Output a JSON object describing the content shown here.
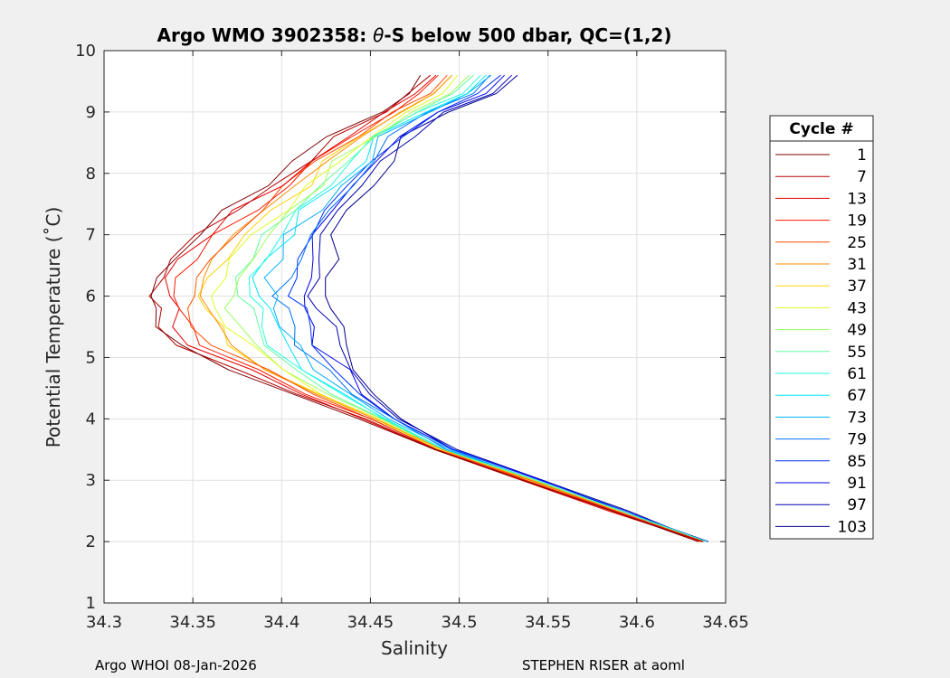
{
  "window": {
    "title_parts": [
      "Argo WMO 3902358: ",
      "θ",
      "-S below 500 dbar,  QC=(1,2)"
    ],
    "footer_left": "Argo WHOI 08-Jan-2026",
    "footer_right": "STEPHEN RISER at aoml"
  },
  "chart_data": {
    "type": "line",
    "title": "Argo WMO 3902358: θ-S below 500 dbar,  QC=(1,2)",
    "xlabel": "Salinity",
    "ylabel": "Potential Temperature (˚C)",
    "xlim": [
      34.3,
      34.65
    ],
    "ylim": [
      1,
      10
    ],
    "grid": true,
    "xticks": [
      "34.3",
      "34.35",
      "34.4",
      "34.45",
      "34.5",
      "34.55",
      "34.6",
      "34.65"
    ],
    "yticks": [
      "1",
      "2",
      "3",
      "4",
      "5",
      "6",
      "7",
      "8",
      "9",
      "10"
    ],
    "legend": {
      "title": "Cycle #",
      "placement": "right-outside",
      "entries": [
        {
          "label": "1",
          "color": "#800000"
        },
        {
          "label": "7",
          "color": "#b30000"
        },
        {
          "label": "13",
          "color": "#e60000"
        },
        {
          "label": "19",
          "color": "#ff1a00"
        },
        {
          "label": "25",
          "color": "#ff5000"
        },
        {
          "label": "31",
          "color": "#ff8c00"
        },
        {
          "label": "37",
          "color": "#ffd200"
        },
        {
          "label": "43",
          "color": "#e0ff20"
        },
        {
          "label": "49",
          "color": "#a0ff60"
        },
        {
          "label": "55",
          "color": "#60ff9f"
        },
        {
          "label": "61",
          "color": "#20ffdf"
        },
        {
          "label": "67",
          "color": "#00e5ff"
        },
        {
          "label": "73",
          "color": "#00b0ff"
        },
        {
          "label": "79",
          "color": "#0070ff"
        },
        {
          "label": "85",
          "color": "#0030ff"
        },
        {
          "label": "91",
          "color": "#0000ee"
        },
        {
          "label": "97",
          "color": "#0000b0"
        },
        {
          "label": "103",
          "color": "#000090"
        }
      ]
    },
    "series_shape": {
      "theta": [
        2.0,
        2.5,
        3.0,
        3.5,
        4.0,
        4.4,
        4.8,
        5.2,
        5.5,
        5.8,
        6.0,
        6.3,
        6.6,
        7.0,
        7.4,
        7.8,
        8.2,
        8.6,
        9.0,
        9.3,
        9.6
      ],
      "salinity_low": [
        34.635,
        34.585,
        34.535,
        34.485,
        34.445,
        34.405,
        34.37,
        34.34,
        34.33,
        34.325,
        34.323,
        34.327,
        34.335,
        34.35,
        34.37,
        34.39,
        34.41,
        34.43,
        34.455,
        34.47,
        34.48
      ],
      "salinity_high": [
        34.64,
        34.595,
        34.55,
        34.5,
        34.47,
        34.46,
        34.455,
        34.45,
        34.45,
        34.445,
        34.44,
        34.44,
        34.445,
        34.445,
        34.45,
        34.46,
        34.47,
        34.48,
        34.5,
        34.53,
        34.54
      ]
    }
  }
}
